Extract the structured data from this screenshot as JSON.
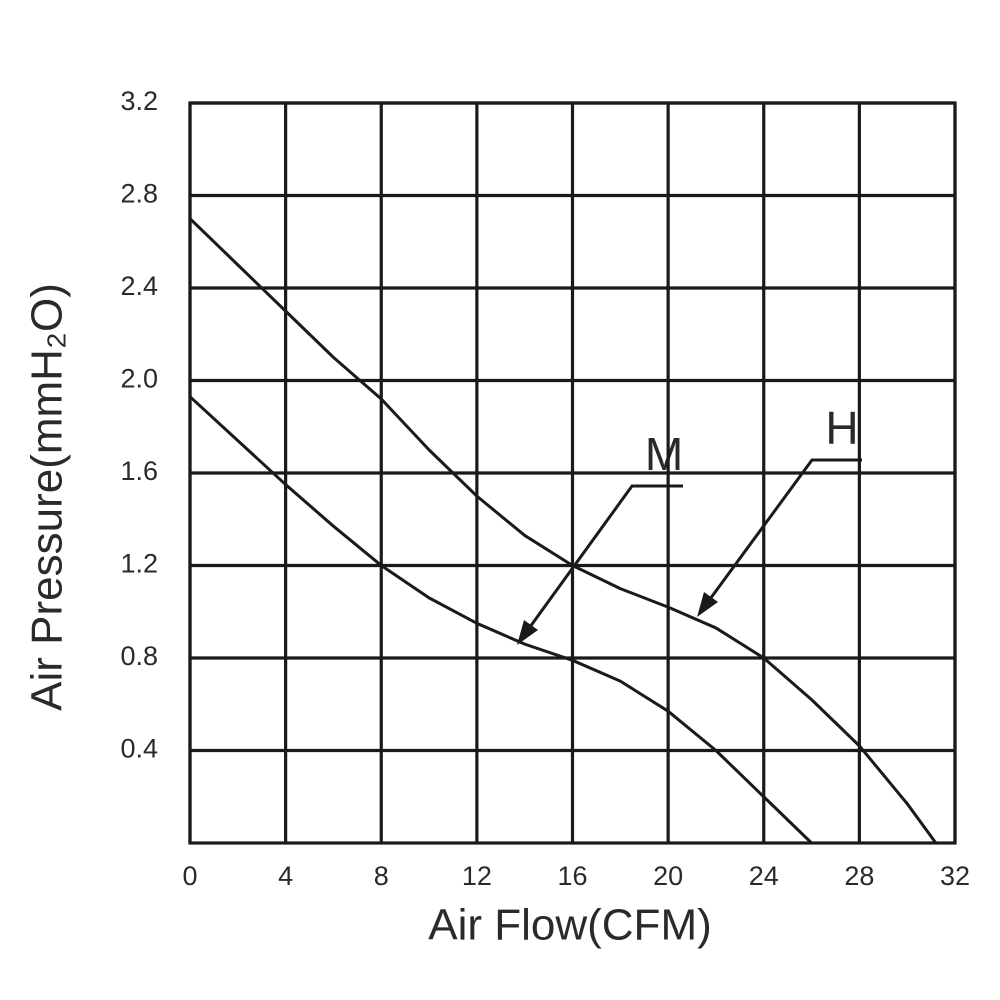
{
  "chart_data": {
    "type": "line",
    "x_label": "Air Flow(CFM)",
    "y_label": "Air Pressure(mmH₂O)",
    "series": [
      {
        "name": "H",
        "color": "#1a1a1a",
        "x": [
          0,
          2,
          4,
          6,
          8,
          10,
          12,
          14,
          16,
          18,
          20,
          22,
          24,
          26,
          28,
          30,
          31.2
        ],
        "values": [
          2.7,
          2.5,
          2.3,
          2.1,
          1.92,
          1.7,
          1.5,
          1.33,
          1.2,
          1.1,
          1.02,
          0.93,
          0.8,
          0.62,
          0.42,
          0.17,
          0
        ]
      },
      {
        "name": "M",
        "color": "#1a1a1a",
        "x": [
          0,
          2,
          4,
          6,
          8,
          10,
          12,
          14,
          16,
          18,
          20,
          22,
          24,
          26
        ],
        "values": [
          1.93,
          1.74,
          1.55,
          1.37,
          1.2,
          1.06,
          0.95,
          0.86,
          0.79,
          0.7,
          0.57,
          0.4,
          0.2,
          0
        ]
      }
    ],
    "xlim": [
      0,
      32
    ],
    "xticks": [
      0,
      4,
      8,
      12,
      16,
      20,
      24,
      28,
      32
    ],
    "ylim": [
      0,
      3.2
    ],
    "yticks": [
      0.4,
      0.8,
      1.2,
      1.6,
      {
        "value": 2,
        "label": "2.0"
      },
      2.4,
      2.8,
      3.2
    ],
    "grid": true
  }
}
